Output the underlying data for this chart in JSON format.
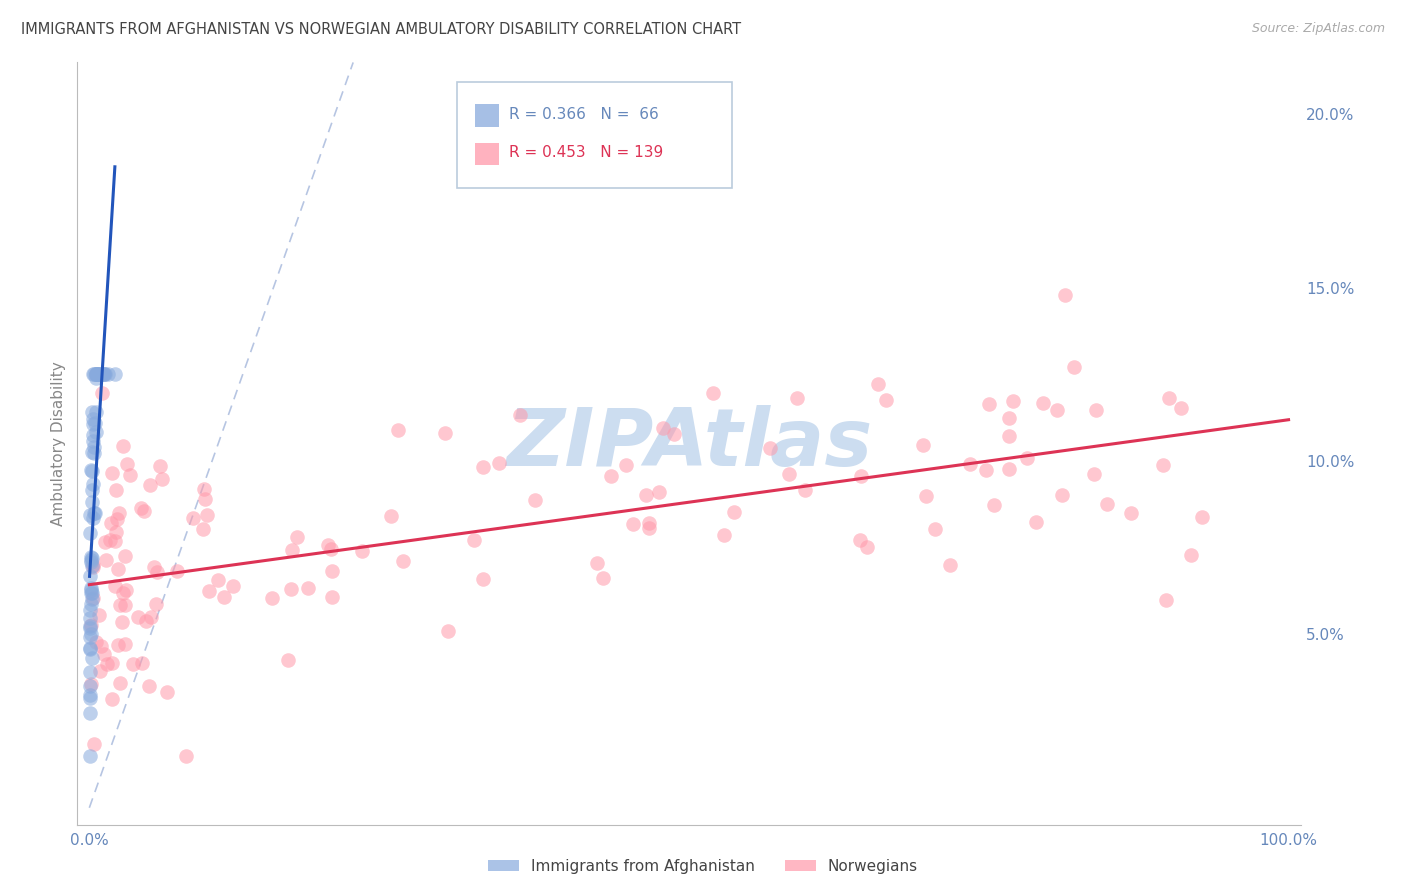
{
  "title": "IMMIGRANTS FROM AFGHANISTAN VS NORWEGIAN AMBULATORY DISABILITY CORRELATION CHART",
  "source": "Source: ZipAtlas.com",
  "ylabel": "Ambulatory Disability",
  "blue_label": "Immigrants from Afghanistan",
  "pink_label": "Norwegians",
  "blue_R": 0.366,
  "blue_N": 66,
  "pink_R": 0.453,
  "pink_N": 139,
  "blue_color": "#88AADD",
  "pink_color": "#FF99AA",
  "blue_trend_color": "#2255BB",
  "pink_trend_color": "#DD3355",
  "ref_line_color": "#AABBDD",
  "background_color": "#FFFFFF",
  "grid_color": "#DDDDEE",
  "watermark_color": "#CCDDF0",
  "title_color": "#444444",
  "axis_label_color": "#6688BB",
  "ylim_min": -0.005,
  "ylim_max": 0.215,
  "yticks": [
    0.05,
    0.1,
    0.15,
    0.2
  ],
  "ytick_labels": [
    "5.0%",
    "10.0%",
    "15.0%",
    "20.0%"
  ],
  "xticks": [
    0.0,
    1.0
  ],
  "xtick_labels": [
    "0.0%",
    "100.0%"
  ],
  "blue_seed": 12,
  "pink_seed": 7
}
